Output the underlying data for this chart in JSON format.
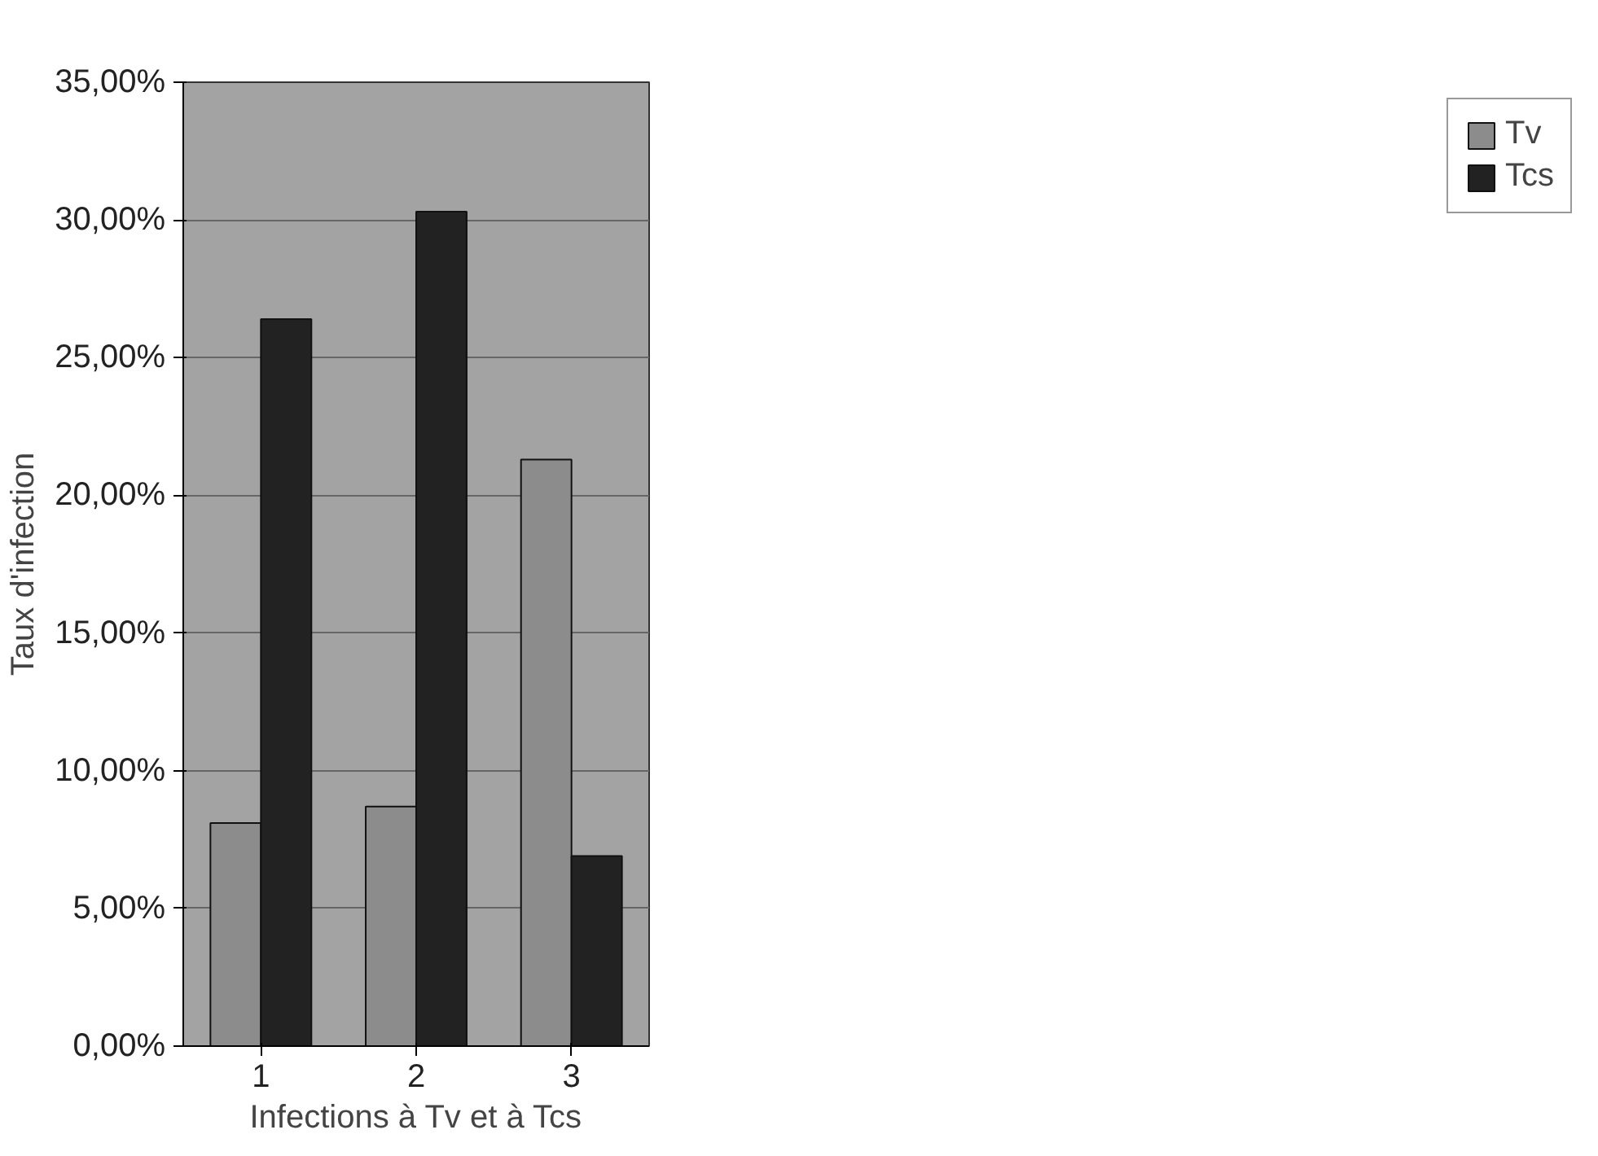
{
  "chart_data": {
    "type": "bar",
    "xlabel": "Infections à Tv et à Tcs",
    "ylabel": "Taux d'infection",
    "categories": [
      "1",
      "2",
      "3"
    ],
    "series": [
      {
        "name": "Tv",
        "color": "#8c8c8c",
        "values": [
          8.1,
          8.7,
          21.3
        ]
      },
      {
        "name": "Tcs",
        "color": "#222222",
        "values": [
          26.4,
          30.3,
          6.9
        ]
      }
    ],
    "ylim": [
      0,
      35
    ],
    "yticks": [
      {
        "value": 0,
        "label": "0,00%"
      },
      {
        "value": 5,
        "label": "5,00%"
      },
      {
        "value": 10,
        "label": "10,00%"
      },
      {
        "value": 15,
        "label": "15,00%"
      },
      {
        "value": 20,
        "label": "20,00%"
      },
      {
        "value": 25,
        "label": "25,00%"
      },
      {
        "value": 30,
        "label": "30,00%"
      },
      {
        "value": 35,
        "label": "35,00%"
      }
    ],
    "grid": "y",
    "legend": "right"
  }
}
